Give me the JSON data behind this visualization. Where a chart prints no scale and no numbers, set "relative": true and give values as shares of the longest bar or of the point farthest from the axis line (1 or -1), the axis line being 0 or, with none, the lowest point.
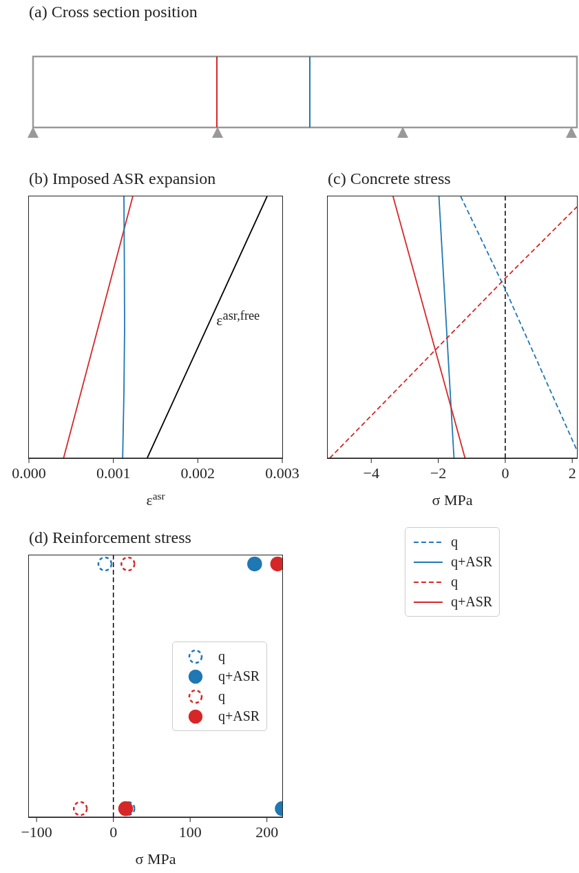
{
  "chart_data": [
    {
      "type": "other",
      "title": "(a) Cross section position"
    },
    {
      "type": "line",
      "title": "(b) Imposed ASR expansion",
      "xlabel": "ε$^{asr}$",
      "relative": true,
      "tick_labels": "x",
      "xlim": [
        0,
        0.003
      ],
      "xticks": [
        {
          "value": 0,
          "label": "0.000"
        },
        {
          "value": 0.001,
          "label": "0.001"
        },
        {
          "value": 0.002,
          "label": "0.002"
        },
        {
          "value": 0.003,
          "label": "0.003"
        }
      ],
      "annotations": [
        "ε$^{asr,free}$"
      ],
      "series": [
        {
          "color": "#d62728",
          "x": [
            0.00041,
            0.00123
          ],
          "values": [
            0,
            1
          ]
        },
        {
          "color": "#1f77b4",
          "x": [
            0.00111,
            0.001125,
            0.001133,
            0.00113,
            0.001125
          ],
          "values": [
            0,
            0.25,
            0.5,
            0.75,
            1
          ]
        },
        {
          "color": "#000000",
          "x": [
            0.0014,
            0.00282
          ],
          "values": [
            0,
            1
          ]
        }
      ]
    },
    {
      "type": "line",
      "title": "(c) Concrete stress",
      "xlabel": "σ MPa",
      "relative": true,
      "tick_labels": "x",
      "xlim": [
        -5.3,
        2.14
      ],
      "xticks": [
        {
          "value": -4,
          "label": "−4"
        },
        {
          "value": -2,
          "label": "−2"
        },
        0,
        2
      ],
      "legend": "bottom",
      "ref_lines": [
        {
          "axis": "x",
          "value": 0,
          "color": "#000000",
          "line_style": "dashed"
        }
      ],
      "series": [
        {
          "name": "q",
          "color": "#1f77b4",
          "line_style": "dashed",
          "x": [
            -1.33,
            0,
            2.14
          ],
          "values": [
            1,
            0.645,
            0.03
          ]
        },
        {
          "name": "q+ASR",
          "color": "#1f77b4",
          "line_style": "solid",
          "x": [
            -1.53,
            -1.98
          ],
          "values": [
            0,
            1
          ]
        },
        {
          "name": "q",
          "color": "#d62728",
          "line_style": "dashed",
          "x": [
            -5.24,
            0,
            2.14
          ],
          "values": [
            0,
            0.687,
            0.96
          ]
        },
        {
          "name": "q+ASR",
          "color": "#d62728",
          "line_style": "solid",
          "x": [
            -1.2,
            -3.35
          ],
          "values": [
            0,
            1
          ]
        }
      ]
    },
    {
      "type": "scatter",
      "title": "(d) Reinforcement stress",
      "xlabel": "σ MPa",
      "orientation": "horizontal",
      "categories": [
        null,
        null
      ],
      "tick_labels": "x",
      "xlim": [
        -110,
        220
      ],
      "xticks": [
        {
          "value": -100,
          "label": "−100"
        },
        0,
        100,
        200
      ],
      "legend": "center right",
      "marker": "circle",
      "ref_lines": [
        {
          "axis": "x",
          "value": 0,
          "color": "#000000",
          "line_style": "dashed"
        }
      ],
      "series": [
        {
          "name": "q",
          "color": "#1f77b4",
          "line_style": "dashed",
          "values": [
            -11,
            19
          ]
        },
        {
          "name": "q+ASR",
          "color": "#1f77b4",
          "line_style": "solid",
          "values": [
            184,
            220
          ]
        },
        {
          "name": "q",
          "color": "#d62728",
          "line_style": "dashed",
          "values": [
            19,
            -43
          ]
        },
        {
          "name": "q+ASR",
          "color": "#d62728",
          "line_style": "solid",
          "values": [
            214,
            16
          ]
        }
      ]
    }
  ]
}
